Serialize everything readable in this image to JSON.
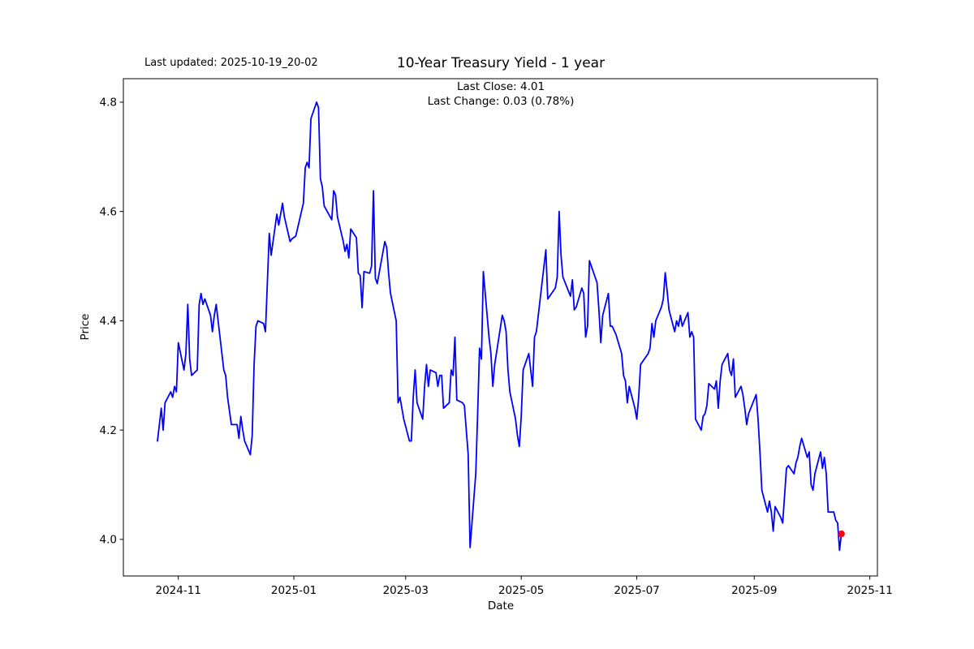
{
  "figure": {
    "last_updated_annotation": "Last updated: 2025-10-19_20-02",
    "title": "10-Year Treasury Yield - 1 year",
    "subtitle_line1": "Last Close: 4.01",
    "subtitle_line2": "Last Change: 0.03 (0.78%)"
  },
  "chart_data": {
    "type": "line",
    "title": "10-Year Treasury Yield - 1 year",
    "xlabel": "Date",
    "ylabel": "Price",
    "last_close": 4.01,
    "last_change": "0.03 (0.78%)",
    "line_color": "#0000ff",
    "last_point_marker_color": "#ff0000",
    "grid": false,
    "x_domain": [
      "2024-10-03",
      "2025-11-05"
    ],
    "y_domain": [
      3.933,
      4.843
    ],
    "x_ticks": [
      {
        "label": "2024-11",
        "date": "2024-11-01"
      },
      {
        "label": "2025-01",
        "date": "2025-01-01"
      },
      {
        "label": "2025-03",
        "date": "2025-03-01"
      },
      {
        "label": "2025-05",
        "date": "2025-05-01"
      },
      {
        "label": "2025-07",
        "date": "2025-07-01"
      },
      {
        "label": "2025-09",
        "date": "2025-09-01"
      },
      {
        "label": "2025-11",
        "date": "2025-11-01"
      }
    ],
    "y_ticks": [
      "4.0",
      "4.2",
      "4.4",
      "4.6",
      "4.8"
    ],
    "series": [
      {
        "name": "10-Year Treasury Yield",
        "points": [
          [
            "2024-10-21",
            4.18
          ],
          [
            "2024-10-22",
            4.21
          ],
          [
            "2024-10-23",
            4.24
          ],
          [
            "2024-10-24",
            4.2
          ],
          [
            "2024-10-25",
            4.25
          ],
          [
            "2024-10-28",
            4.27
          ],
          [
            "2024-10-29",
            4.26
          ],
          [
            "2024-10-30",
            4.28
          ],
          [
            "2024-10-31",
            4.27
          ],
          [
            "2024-11-01",
            4.36
          ],
          [
            "2024-11-04",
            4.31
          ],
          [
            "2024-11-05",
            4.34
          ],
          [
            "2024-11-06",
            4.43
          ],
          [
            "2024-11-07",
            4.33
          ],
          [
            "2024-11-08",
            4.3
          ],
          [
            "2024-11-11",
            4.31
          ],
          [
            "2024-11-12",
            4.43
          ],
          [
            "2024-11-13",
            4.45
          ],
          [
            "2024-11-14",
            4.43
          ],
          [
            "2024-11-15",
            4.44
          ],
          [
            "2024-11-18",
            4.41
          ],
          [
            "2024-11-19",
            4.38
          ],
          [
            "2024-11-20",
            4.41
          ],
          [
            "2024-11-21",
            4.43
          ],
          [
            "2024-11-22",
            4.4
          ],
          [
            "2024-11-25",
            4.31
          ],
          [
            "2024-11-26",
            4.3
          ],
          [
            "2024-11-27",
            4.26
          ],
          [
            "2024-11-29",
            4.21
          ],
          [
            "2024-12-02",
            4.21
          ],
          [
            "2024-12-03",
            4.185
          ],
          [
            "2024-12-04",
            4.225
          ],
          [
            "2024-12-05",
            4.2
          ],
          [
            "2024-12-06",
            4.18
          ],
          [
            "2024-12-09",
            4.155
          ],
          [
            "2024-12-10",
            4.19
          ],
          [
            "2024-12-11",
            4.32
          ],
          [
            "2024-12-12",
            4.39
          ],
          [
            "2024-12-13",
            4.4
          ],
          [
            "2024-12-16",
            4.395
          ],
          [
            "2024-12-17",
            4.38
          ],
          [
            "2024-12-18",
            4.47
          ],
          [
            "2024-12-19",
            4.56
          ],
          [
            "2024-12-20",
            4.52
          ],
          [
            "2024-12-23",
            4.595
          ],
          [
            "2024-12-24",
            4.575
          ],
          [
            "2024-12-26",
            4.615
          ],
          [
            "2024-12-27",
            4.59
          ],
          [
            "2024-12-30",
            4.545
          ],
          [
            "2024-12-31",
            4.55
          ],
          [
            "2025-01-02",
            4.555
          ],
          [
            "2025-01-03",
            4.57
          ],
          [
            "2025-01-06",
            4.615
          ],
          [
            "2025-01-07",
            4.68
          ],
          [
            "2025-01-08",
            4.69
          ],
          [
            "2025-01-09",
            4.68
          ],
          [
            "2025-01-10",
            4.77
          ],
          [
            "2025-01-13",
            4.8
          ],
          [
            "2025-01-14",
            4.79
          ],
          [
            "2025-01-15",
            4.66
          ],
          [
            "2025-01-16",
            4.645
          ],
          [
            "2025-01-17",
            4.61
          ],
          [
            "2025-01-21",
            4.585
          ],
          [
            "2025-01-22",
            4.638
          ],
          [
            "2025-01-23",
            4.63
          ],
          [
            "2025-01-24",
            4.59
          ],
          [
            "2025-01-27",
            4.546
          ],
          [
            "2025-01-28",
            4.527
          ],
          [
            "2025-01-29",
            4.54
          ],
          [
            "2025-01-30",
            4.515
          ],
          [
            "2025-01-31",
            4.568
          ],
          [
            "2025-02-03",
            4.552
          ],
          [
            "2025-02-04",
            4.487
          ],
          [
            "2025-02-05",
            4.483
          ],
          [
            "2025-02-06",
            4.424
          ],
          [
            "2025-02-07",
            4.49
          ],
          [
            "2025-02-10",
            4.487
          ],
          [
            "2025-02-11",
            4.5
          ],
          [
            "2025-02-12",
            4.638
          ],
          [
            "2025-02-13",
            4.478
          ],
          [
            "2025-02-14",
            4.468
          ],
          [
            "2025-02-18",
            4.545
          ],
          [
            "2025-02-19",
            4.534
          ],
          [
            "2025-02-20",
            4.487
          ],
          [
            "2025-02-21",
            4.45
          ],
          [
            "2025-02-24",
            4.4
          ],
          [
            "2025-02-25",
            4.25
          ],
          [
            "2025-02-26",
            4.26
          ],
          [
            "2025-02-27",
            4.24
          ],
          [
            "2025-02-28",
            4.22
          ],
          [
            "2025-03-03",
            4.18
          ],
          [
            "2025-03-04",
            4.18
          ],
          [
            "2025-03-05",
            4.26
          ],
          [
            "2025-03-06",
            4.31
          ],
          [
            "2025-03-07",
            4.25
          ],
          [
            "2025-03-10",
            4.22
          ],
          [
            "2025-03-11",
            4.28
          ],
          [
            "2025-03-12",
            4.32
          ],
          [
            "2025-03-13",
            4.28
          ],
          [
            "2025-03-14",
            4.31
          ],
          [
            "2025-03-17",
            4.305
          ],
          [
            "2025-03-18",
            4.28
          ],
          [
            "2025-03-19",
            4.3
          ],
          [
            "2025-03-20",
            4.3
          ],
          [
            "2025-03-21",
            4.24
          ],
          [
            "2025-03-24",
            4.25
          ],
          [
            "2025-03-25",
            4.31
          ],
          [
            "2025-03-26",
            4.3
          ],
          [
            "2025-03-27",
            4.37
          ],
          [
            "2025-03-28",
            4.255
          ],
          [
            "2025-03-31",
            4.25
          ],
          [
            "2025-04-01",
            4.245
          ],
          [
            "2025-04-02",
            4.2
          ],
          [
            "2025-04-03",
            4.155
          ],
          [
            "2025-04-04",
            3.985
          ],
          [
            "2025-04-07",
            4.12
          ],
          [
            "2025-04-08",
            4.23
          ],
          [
            "2025-04-09",
            4.35
          ],
          [
            "2025-04-10",
            4.33
          ],
          [
            "2025-04-11",
            4.49
          ],
          [
            "2025-04-14",
            4.37
          ],
          [
            "2025-04-15",
            4.34
          ],
          [
            "2025-04-16",
            4.28
          ],
          [
            "2025-04-17",
            4.32
          ],
          [
            "2025-04-21",
            4.41
          ],
          [
            "2025-04-22",
            4.4
          ],
          [
            "2025-04-23",
            4.38
          ],
          [
            "2025-04-24",
            4.31
          ],
          [
            "2025-04-25",
            4.27
          ],
          [
            "2025-04-28",
            4.22
          ],
          [
            "2025-04-29",
            4.19
          ],
          [
            "2025-04-30",
            4.17
          ],
          [
            "2025-05-01",
            4.225
          ],
          [
            "2025-05-02",
            4.31
          ],
          [
            "2025-05-05",
            4.34
          ],
          [
            "2025-05-06",
            4.31
          ],
          [
            "2025-05-07",
            4.28
          ],
          [
            "2025-05-08",
            4.37
          ],
          [
            "2025-05-09",
            4.38
          ],
          [
            "2025-05-12",
            4.47
          ],
          [
            "2025-05-13",
            4.5
          ],
          [
            "2025-05-14",
            4.53
          ],
          [
            "2025-05-15",
            4.44
          ],
          [
            "2025-05-16",
            4.445
          ],
          [
            "2025-05-19",
            4.46
          ],
          [
            "2025-05-20",
            4.48
          ],
          [
            "2025-05-21",
            4.6
          ],
          [
            "2025-05-22",
            4.52
          ],
          [
            "2025-05-23",
            4.48
          ],
          [
            "2025-05-27",
            4.445
          ],
          [
            "2025-05-28",
            4.475
          ],
          [
            "2025-05-29",
            4.42
          ],
          [
            "2025-05-30",
            4.425
          ],
          [
            "2025-06-02",
            4.46
          ],
          [
            "2025-06-03",
            4.45
          ],
          [
            "2025-06-04",
            4.37
          ],
          [
            "2025-06-05",
            4.39
          ],
          [
            "2025-06-06",
            4.51
          ],
          [
            "2025-06-09",
            4.48
          ],
          [
            "2025-06-10",
            4.47
          ],
          [
            "2025-06-11",
            4.42
          ],
          [
            "2025-06-12",
            4.36
          ],
          [
            "2025-06-13",
            4.41
          ],
          [
            "2025-06-16",
            4.45
          ],
          [
            "2025-06-17",
            4.39
          ],
          [
            "2025-06-18",
            4.39
          ],
          [
            "2025-06-20",
            4.375
          ],
          [
            "2025-06-23",
            4.34
          ],
          [
            "2025-06-24",
            4.3
          ],
          [
            "2025-06-25",
            4.29
          ],
          [
            "2025-06-26",
            4.25
          ],
          [
            "2025-06-27",
            4.28
          ],
          [
            "2025-06-30",
            4.24
          ],
          [
            "2025-07-01",
            4.22
          ],
          [
            "2025-07-02",
            4.26
          ],
          [
            "2025-07-03",
            4.32
          ],
          [
            "2025-07-07",
            4.34
          ],
          [
            "2025-07-08",
            4.35
          ],
          [
            "2025-07-09",
            4.395
          ],
          [
            "2025-07-10",
            4.37
          ],
          [
            "2025-07-11",
            4.4
          ],
          [
            "2025-07-14",
            4.425
          ],
          [
            "2025-07-15",
            4.44
          ],
          [
            "2025-07-16",
            4.488
          ],
          [
            "2025-07-17",
            4.455
          ],
          [
            "2025-07-18",
            4.42
          ],
          [
            "2025-07-21",
            4.38
          ],
          [
            "2025-07-22",
            4.4
          ],
          [
            "2025-07-23",
            4.39
          ],
          [
            "2025-07-24",
            4.41
          ],
          [
            "2025-07-25",
            4.39
          ],
          [
            "2025-07-28",
            4.415
          ],
          [
            "2025-07-29",
            4.37
          ],
          [
            "2025-07-30",
            4.38
          ],
          [
            "2025-07-31",
            4.37
          ],
          [
            "2025-08-01",
            4.22
          ],
          [
            "2025-08-04",
            4.2
          ],
          [
            "2025-08-05",
            4.225
          ],
          [
            "2025-08-06",
            4.23
          ],
          [
            "2025-08-07",
            4.245
          ],
          [
            "2025-08-08",
            4.285
          ],
          [
            "2025-08-11",
            4.275
          ],
          [
            "2025-08-12",
            4.29
          ],
          [
            "2025-08-13",
            4.24
          ],
          [
            "2025-08-14",
            4.29
          ],
          [
            "2025-08-15",
            4.32
          ],
          [
            "2025-08-18",
            4.34
          ],
          [
            "2025-08-19",
            4.31
          ],
          [
            "2025-08-20",
            4.3
          ],
          [
            "2025-08-21",
            4.33
          ],
          [
            "2025-08-22",
            4.26
          ],
          [
            "2025-08-25",
            4.28
          ],
          [
            "2025-08-26",
            4.265
          ],
          [
            "2025-08-27",
            4.24
          ],
          [
            "2025-08-28",
            4.21
          ],
          [
            "2025-08-29",
            4.23
          ],
          [
            "2025-09-02",
            4.265
          ],
          [
            "2025-09-03",
            4.22
          ],
          [
            "2025-09-04",
            4.16
          ],
          [
            "2025-09-05",
            4.09
          ],
          [
            "2025-09-08",
            4.05
          ],
          [
            "2025-09-09",
            4.07
          ],
          [
            "2025-09-10",
            4.05
          ],
          [
            "2025-09-11",
            4.015
          ],
          [
            "2025-09-12",
            4.06
          ],
          [
            "2025-09-15",
            4.04
          ],
          [
            "2025-09-16",
            4.03
          ],
          [
            "2025-09-17",
            4.08
          ],
          [
            "2025-09-18",
            4.13
          ],
          [
            "2025-09-19",
            4.135
          ],
          [
            "2025-09-22",
            4.12
          ],
          [
            "2025-09-23",
            4.14
          ],
          [
            "2025-09-24",
            4.15
          ],
          [
            "2025-09-25",
            4.17
          ],
          [
            "2025-09-26",
            4.185
          ],
          [
            "2025-09-29",
            4.15
          ],
          [
            "2025-09-30",
            4.16
          ],
          [
            "2025-10-01",
            4.1
          ],
          [
            "2025-10-02",
            4.09
          ],
          [
            "2025-10-03",
            4.12
          ],
          [
            "2025-10-06",
            4.16
          ],
          [
            "2025-10-07",
            4.13
          ],
          [
            "2025-10-08",
            4.15
          ],
          [
            "2025-10-09",
            4.12
          ],
          [
            "2025-10-10",
            4.05
          ],
          [
            "2025-10-13",
            4.05
          ],
          [
            "2025-10-14",
            4.035
          ],
          [
            "2025-10-15",
            4.03
          ],
          [
            "2025-10-16",
            3.98
          ],
          [
            "2025-10-17",
            4.01
          ]
        ]
      }
    ]
  }
}
